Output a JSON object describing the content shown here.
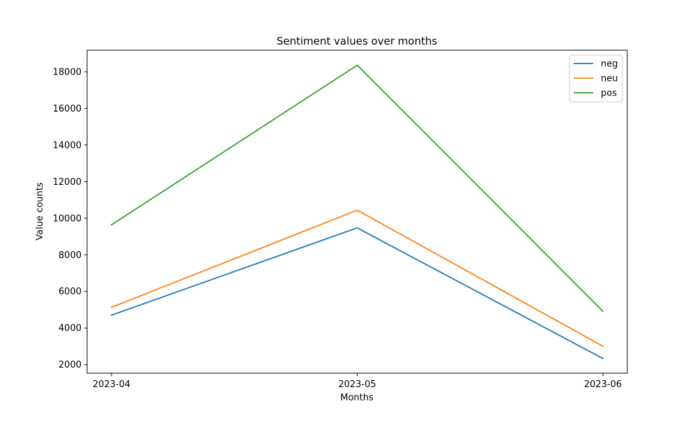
{
  "chart_data": {
    "type": "line",
    "title": "Sentiment values over months",
    "xlabel": "Months",
    "ylabel": "Value counts",
    "categories": [
      "2023-04",
      "2023-05",
      "2023-06"
    ],
    "series": [
      {
        "name": "neg",
        "color": "#1f77b4",
        "values": [
          4700,
          9470,
          2330
        ]
      },
      {
        "name": "neu",
        "color": "#ff7f0e",
        "values": [
          5130,
          10440,
          3000
        ]
      },
      {
        "name": "pos",
        "color": "#2ca02c",
        "values": [
          9640,
          18360,
          4920
        ]
      }
    ],
    "ylim": [
      1530,
      19180
    ],
    "yticks": [
      2000,
      4000,
      6000,
      8000,
      10000,
      12000,
      14000,
      16000,
      18000
    ],
    "ytick_labels": [
      "2000",
      "4000",
      "6000",
      "8000",
      "10000",
      "12000",
      "14000",
      "16000",
      "18000"
    ],
    "grid": false,
    "legend_position": "top-right"
  }
}
